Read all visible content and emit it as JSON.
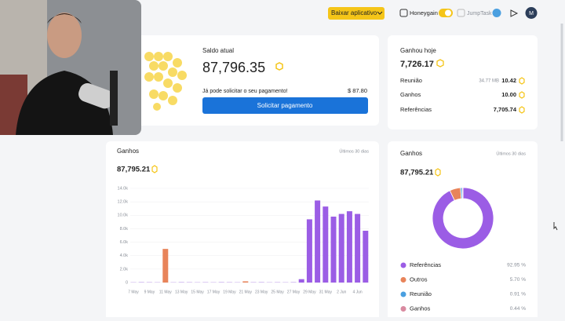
{
  "topbar": {
    "download_button": "Baixar aplicativo",
    "honeygain_label": "Honeygain",
    "jumptask_label": "JumpTask",
    "avatar": "M"
  },
  "balance": {
    "title": "Saldo atual",
    "amount": "87,796.35",
    "message": "Já pode solicitar o seu pagamento!",
    "usd": "$ 87.80",
    "button": "Solicitar pagamento"
  },
  "today": {
    "title": "Ganhou hoje",
    "amount": "7,726.17",
    "rows": [
      {
        "label": "Reunião",
        "detail": "34.77 MB",
        "value": "10.42"
      },
      {
        "label": "Ganhos",
        "value": "10.00"
      },
      {
        "label": "Referências",
        "value": "7,705.74"
      }
    ]
  },
  "chart_data": [
    {
      "type": "bar",
      "title": "Ganhos",
      "subtitle": "Últimos 30 dias",
      "total": "87,795.21",
      "categories": [
        "7 May",
        null,
        "9 May",
        null,
        "11 May",
        null,
        "13 May",
        null,
        "15 May",
        null,
        "17 May",
        null,
        "19 May",
        null,
        "21 May",
        null,
        "23 May",
        null,
        "25 May",
        null,
        "27 May",
        null,
        "29 May",
        null,
        "31 May",
        null,
        "2 Jun",
        null,
        "4 Jun",
        null
      ],
      "values": [
        40,
        60,
        50,
        40,
        5000,
        40,
        60,
        50,
        40,
        50,
        40,
        60,
        50,
        40,
        180,
        50,
        60,
        40,
        50,
        40,
        60,
        500,
        9400,
        12200,
        11300,
        9800,
        10200,
        10600,
        10200,
        7700
      ],
      "bar_colors": [
        "#b48be8",
        "#b48be8",
        "#b48be8",
        "#b48be8",
        "#e8845a",
        "#b48be8",
        "#b48be8",
        "#b48be8",
        "#b48be8",
        "#b48be8",
        "#b48be8",
        "#b48be8",
        "#b48be8",
        "#b48be8",
        "#e8845a",
        "#b48be8",
        "#b48be8",
        "#b48be8",
        "#b48be8",
        "#b48be8",
        "#b48be8",
        "#9b5de5",
        "#9b5de5",
        "#9b5de5",
        "#9b5de5",
        "#9b5de5",
        "#9b5de5",
        "#9b5de5",
        "#9b5de5",
        "#9b5de5"
      ],
      "ylim": [
        0,
        14000
      ],
      "yticks": [
        0,
        {
          "value": 2000,
          "label": "2.0k"
        },
        {
          "value": 4000,
          "label": "4.0k"
        },
        {
          "value": 6000,
          "label": "6.0k"
        },
        {
          "value": 8000,
          "label": "8.0k"
        },
        {
          "value": 10000,
          "label": "10.0k"
        },
        {
          "value": 12000,
          "label": "12.0k"
        },
        {
          "value": 14000,
          "label": "14.0k"
        }
      ]
    },
    {
      "type": "pie",
      "title": "Ganhos",
      "subtitle": "Últimos 30 dias",
      "total": "87,795.21",
      "categories": [
        "Referências",
        "Outros",
        "Reunião",
        "Ganhos"
      ],
      "values": [
        92.95,
        5.7,
        0.91,
        0.44
      ],
      "value_labels": [
        "92.95 %",
        "5.70 %",
        "0.91 %",
        "0.44 %"
      ],
      "colors": [
        "#9b5de5",
        "#e8845a",
        "#4a9fe0",
        "#d98aa0"
      ]
    }
  ]
}
